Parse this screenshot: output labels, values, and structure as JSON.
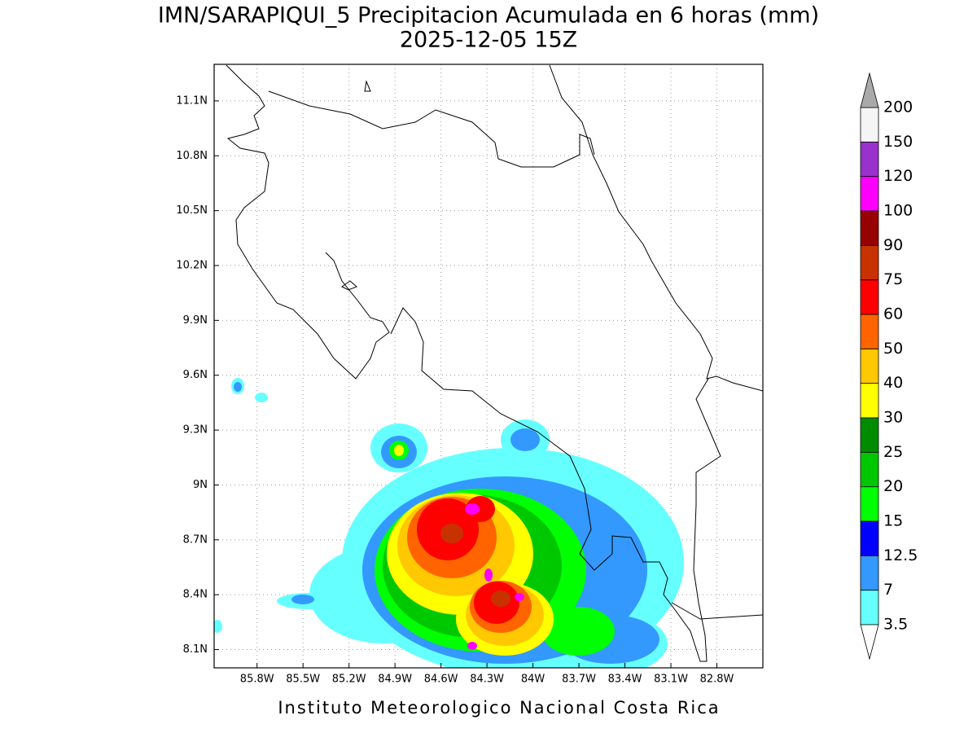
{
  "chart_data": {
    "type": "map",
    "title": "IMN/SARAPIQUI_5 Precipitacion Acumulada en 6 horas (mm)",
    "subtitle": "2025-12-05 15Z",
    "credit": "Instituto Meteorologico Nacional Costa Rica",
    "xlim": [
      -86.08,
      -82.5
    ],
    "ylim": [
      8.0,
      11.3
    ],
    "xticks": [
      {
        "value": -85.8,
        "label": "85.8W"
      },
      {
        "value": -85.5,
        "label": "85.5W"
      },
      {
        "value": -85.2,
        "label": "85.2W"
      },
      {
        "value": -84.9,
        "label": "84.9W"
      },
      {
        "value": -84.6,
        "label": "84.6W"
      },
      {
        "value": -84.3,
        "label": "84.3W"
      },
      {
        "value": -84,
        "label": "84W"
      },
      {
        "value": -83.7,
        "label": "83.7W"
      },
      {
        "value": -83.4,
        "label": "83.4W"
      },
      {
        "value": -83.1,
        "label": "83.1W"
      },
      {
        "value": -82.8,
        "label": "82.8W"
      }
    ],
    "yticks": [
      {
        "value": 8.1,
        "label": "8.1N"
      },
      {
        "value": 8.4,
        "label": "8.4N"
      },
      {
        "value": 8.7,
        "label": "8.7N"
      },
      {
        "value": 9,
        "label": "9N"
      },
      {
        "value": 9.3,
        "label": "9.3N"
      },
      {
        "value": 9.6,
        "label": "9.6N"
      },
      {
        "value": 9.9,
        "label": "9.9N"
      },
      {
        "value": 10.2,
        "label": "10.2N"
      },
      {
        "value": 10.5,
        "label": "10.5N"
      },
      {
        "value": 10.8,
        "label": "10.8N"
      },
      {
        "value": 11.1,
        "label": "11.1N"
      }
    ],
    "grid": true,
    "colorbar": {
      "levels": [
        3.5,
        7,
        12.5,
        15,
        20,
        25,
        30,
        40,
        50,
        60,
        75,
        90,
        100,
        120,
        150,
        200
      ],
      "colors": [
        "#66ffff",
        "#3399ff",
        "#0000ff",
        "#00ff00",
        "#00c800",
        "#008c00",
        "#ffff00",
        "#ffc800",
        "#ff6400",
        "#ff0000",
        "#c83200",
        "#960000",
        "#ff00ff",
        "#9932cc",
        "#f5f5f5"
      ],
      "under_color": "#ffffff",
      "over_color": "#a9a9a9"
    }
  }
}
